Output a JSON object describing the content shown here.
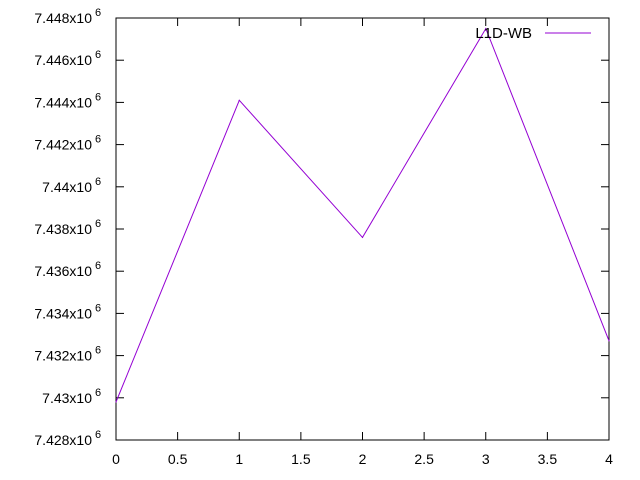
{
  "chart_data": {
    "type": "line",
    "x": [
      0,
      1,
      2,
      3,
      4
    ],
    "series": [
      {
        "name": "L1D-WB",
        "color": "#9400d3",
        "values": [
          7429800,
          7444100,
          7437600,
          7447500,
          7432700
        ]
      }
    ],
    "xlim": [
      0,
      4
    ],
    "ylim": [
      7428000,
      7448000
    ],
    "x_ticks": [
      "0",
      "0.5",
      "1",
      "1.5",
      "2",
      "2.5",
      "3",
      "3.5",
      "4"
    ],
    "y_ticks": [
      {
        "value": 7428000,
        "label": "7.428x10",
        "exp": "6"
      },
      {
        "value": 7430000,
        "label": "7.43x10",
        "exp": "6"
      },
      {
        "value": 7432000,
        "label": "7.432x10",
        "exp": "6"
      },
      {
        "value": 7434000,
        "label": "7.434x10",
        "exp": "6"
      },
      {
        "value": 7436000,
        "label": "7.436x10",
        "exp": "6"
      },
      {
        "value": 7438000,
        "label": "7.438x10",
        "exp": "6"
      },
      {
        "value": 7440000,
        "label": "7.44x10",
        "exp": "6"
      },
      {
        "value": 7442000,
        "label": "7.442x10",
        "exp": "6"
      },
      {
        "value": 7444000,
        "label": "7.444x10",
        "exp": "6"
      },
      {
        "value": 7446000,
        "label": "7.446x10",
        "exp": "6"
      },
      {
        "value": 7448000,
        "label": "7.448x10",
        "exp": "6"
      }
    ],
    "legend_position": "top-right",
    "grid": false
  }
}
